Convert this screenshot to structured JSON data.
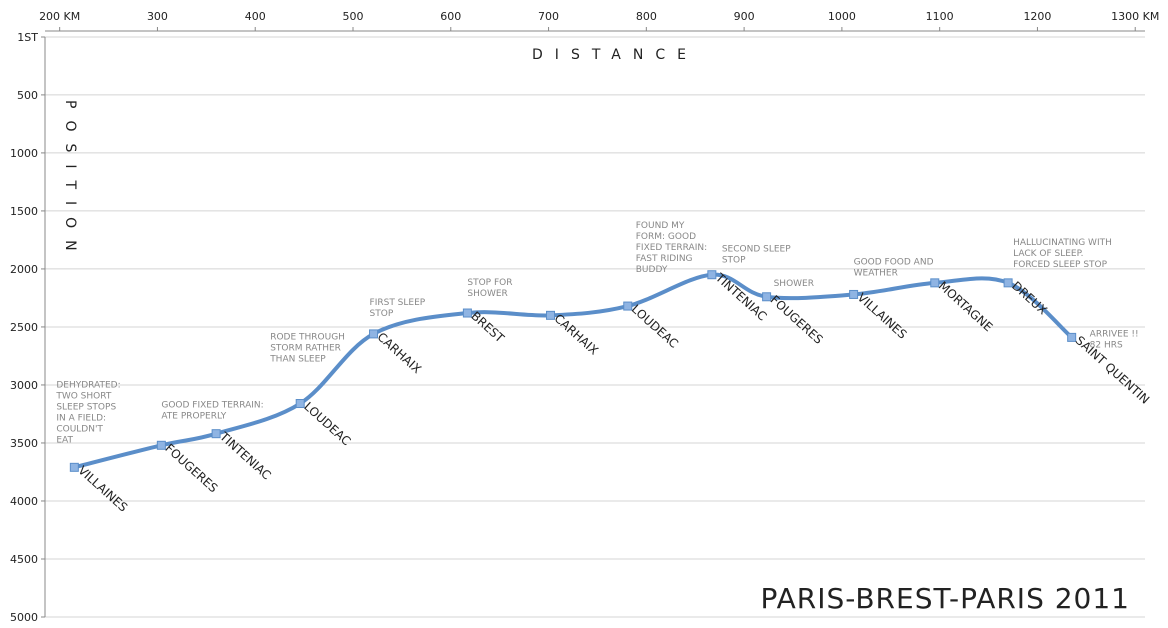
{
  "chart_data": {
    "type": "line",
    "title": "PARIS-BREST-PARIS 2011",
    "x_label": "DISTANCE",
    "y_label": "POSITION",
    "x": [
      215,
      304,
      360,
      446,
      521,
      617,
      702,
      781,
      867,
      923,
      1012,
      1095,
      1170,
      1235
    ],
    "series": [
      {
        "color": "#5b8ec9",
        "values": [
          3710,
          3520,
          3420,
          3160,
          2560,
          2380,
          2400,
          2320,
          2050,
          2240,
          2220,
          2120,
          2120,
          2590
        ]
      }
    ],
    "point_labels": [
      "VILLAINES",
      "FOUGERES",
      "TINTENIAC",
      "LOUDEAC",
      "CARHAIX",
      "BREST",
      "CARHAIX",
      "LOUDEAC",
      "TINTENIAC",
      "FOUGERES",
      "VILLAINES",
      "MORTAGNE",
      "DREUX",
      "SAINT QUENTIN"
    ],
    "annotations": [
      [
        "DEHYDRATED:",
        "TWO SHORT",
        "SLEEP STOPS",
        "IN A FIELD:",
        "COULDN'T",
        "EAT"
      ],
      [
        "GOOD FIXED TERRAIN:",
        "ATE PROPERLY"
      ],
      null,
      [
        "RODE THROUGH",
        "STORM RATHER",
        "THAN SLEEP"
      ],
      [
        "FIRST SLEEP",
        "STOP"
      ],
      [
        "STOP FOR",
        "SHOWER"
      ],
      null,
      [
        "FOUND MY",
        "FORM: GOOD",
        "FIXED TERRAIN:",
        "FAST RIDING",
        "BUDDY"
      ],
      [
        "SECOND SLEEP",
        "STOP"
      ],
      [
        "SHOWER"
      ],
      [
        "GOOD FOOD AND",
        "WEATHER"
      ],
      null,
      [
        "HALLUCINATING WITH",
        "LACK OF SLEEP.",
        "FORCED  SLEEP STOP"
      ],
      [
        "ARRIVEE !!",
        "82 HRS"
      ]
    ],
    "xlim": [
      185,
      1310
    ],
    "xticks": [
      {
        "value": 200,
        "label": "200 KM"
      },
      300,
      400,
      500,
      600,
      700,
      800,
      900,
      1000,
      1100,
      1200,
      {
        "value": 1300,
        "label": "1300 KM"
      }
    ],
    "ylim": [
      1,
      5000
    ],
    "y_reversed": true,
    "yticks": [
      {
        "value": 1,
        "label": "1ST"
      },
      500,
      1000,
      1500,
      2000,
      2500,
      3000,
      3500,
      4000,
      4500,
      5000
    ],
    "grid": true
  }
}
